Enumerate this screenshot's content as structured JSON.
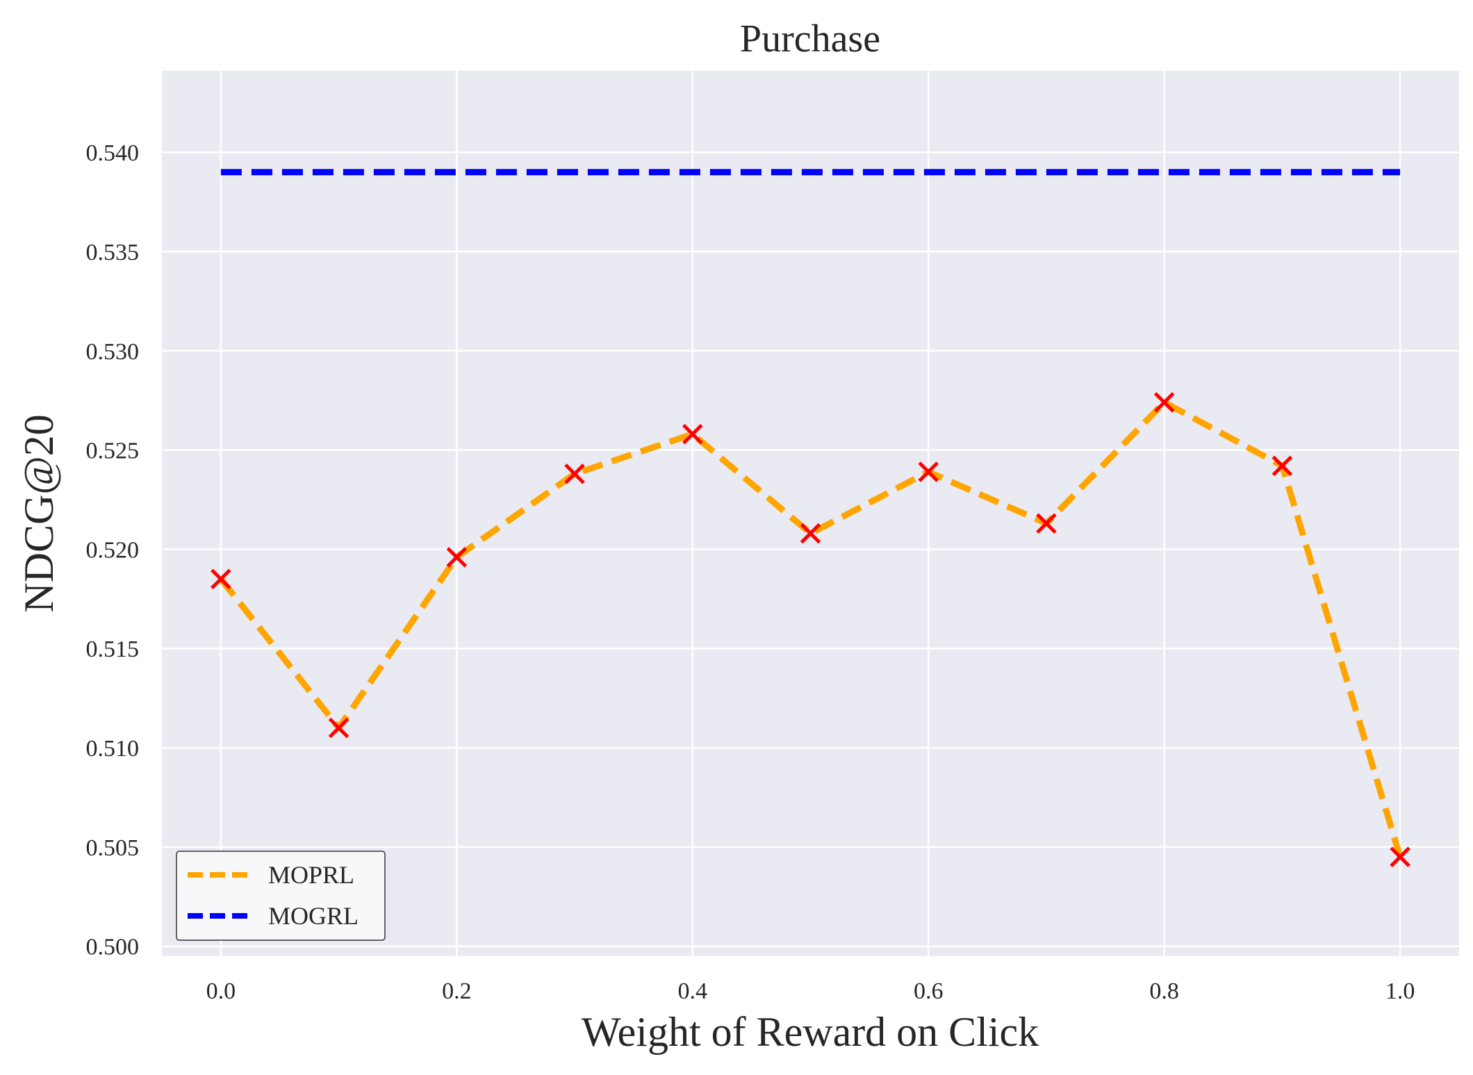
{
  "chart_data": {
    "type": "line",
    "title": "Purchase",
    "xlabel": "Weight of Reward on Click",
    "ylabel": "NDCG@20",
    "xlim": [
      -0.05,
      1.05
    ],
    "ylim": [
      0.4995,
      0.5441
    ],
    "x_ticks": [
      0.0,
      0.2,
      0.4,
      0.6,
      0.8,
      1.0
    ],
    "x_tick_labels": [
      "0.0",
      "0.2",
      "0.4",
      "0.6",
      "0.8",
      "1.0"
    ],
    "y_ticks": [
      0.5,
      0.505,
      0.51,
      0.515,
      0.52,
      0.525,
      0.53,
      0.535,
      0.54
    ],
    "y_tick_labels": [
      "0.500",
      "0.505",
      "0.510",
      "0.515",
      "0.520",
      "0.525",
      "0.530",
      "0.535",
      "0.540"
    ],
    "grid": true,
    "background": "#eaeaf2",
    "legend_position": "lower-left",
    "x": [
      0.0,
      0.1,
      0.2,
      0.3,
      0.4,
      0.5,
      0.6,
      0.7,
      0.8,
      0.9,
      1.0
    ],
    "series": [
      {
        "name": "MOPRL",
        "color": "#ffa500",
        "line_style": "dashed",
        "marker": "x",
        "marker_color": "#ff0000",
        "values": [
          0.5185,
          0.511,
          0.5196,
          0.5238,
          0.5258,
          0.5208,
          0.5239,
          0.5213,
          0.5274,
          0.5242,
          0.5045
        ]
      },
      {
        "name": "MOGRL",
        "color": "#0000ff",
        "line_style": "dashed",
        "marker": "none",
        "values": [
          0.539,
          0.539,
          0.539,
          0.539,
          0.539,
          0.539,
          0.539,
          0.539,
          0.539,
          0.539,
          0.539
        ]
      }
    ]
  }
}
